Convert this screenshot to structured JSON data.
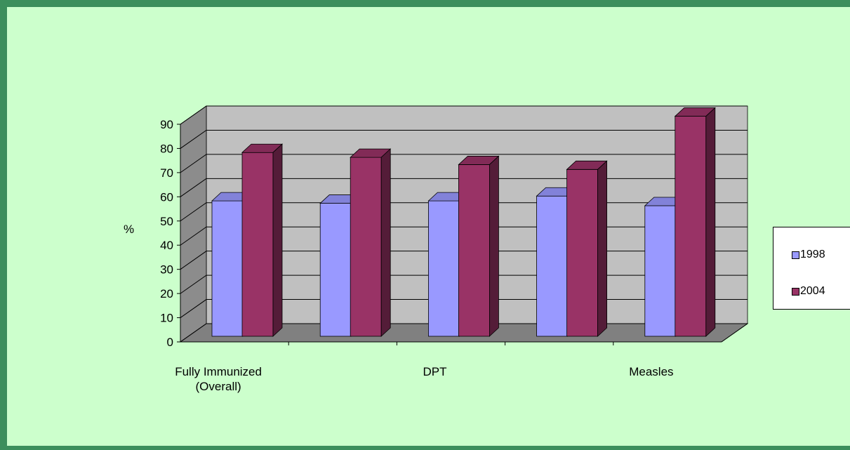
{
  "chart_data": {
    "type": "bar",
    "ylabel": "%",
    "ylim": [
      0,
      90
    ],
    "yticks": [
      "0",
      "10",
      "20",
      "30",
      "40",
      "50",
      "60",
      "70",
      "80",
      "90"
    ],
    "categories": [
      "Fully Immunized\n(Overall)",
      "",
      "DPT",
      "",
      "Measles"
    ],
    "category_labels": [
      {
        "line1": "Fully Immunized",
        "line2": "(Overall)"
      },
      {
        "line1": "",
        "line2": ""
      },
      {
        "line1": "DPT",
        "line2": ""
      },
      {
        "line1": "",
        "line2": ""
      },
      {
        "line1": "Measles",
        "line2": ""
      }
    ],
    "series": [
      {
        "name": "1998",
        "values": [
          56,
          55,
          56,
          58,
          54
        ],
        "color": "#9999ff"
      },
      {
        "name": "2004",
        "values": [
          76,
          74,
          71,
          69,
          91
        ],
        "color": "#993366"
      }
    ],
    "legend_position": "right",
    "grid": true
  },
  "colors": {
    "background": "#ccffcc",
    "border": "#3c8f5c",
    "plot_wall": "#c0c0c0",
    "floor": "#808080"
  }
}
